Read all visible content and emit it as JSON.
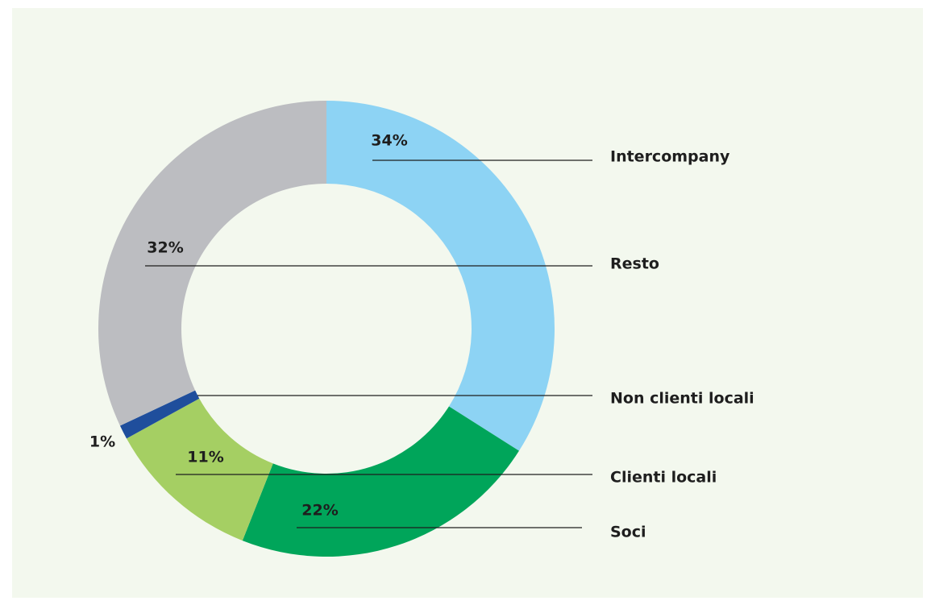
{
  "chart_data": {
    "type": "donut",
    "categories": [
      "Intercompany",
      "Soci",
      "Clienti locali",
      "Non clienti locali",
      "Resto"
    ],
    "values": [
      34,
      22,
      11,
      1,
      32
    ],
    "value_labels": [
      "34%",
      "22%",
      "11%",
      "1%",
      "32%"
    ],
    "colors": [
      "#8dd3f4",
      "#00a55a",
      "#a5cf63",
      "#1f4e9c",
      "#bcbdc1"
    ]
  }
}
